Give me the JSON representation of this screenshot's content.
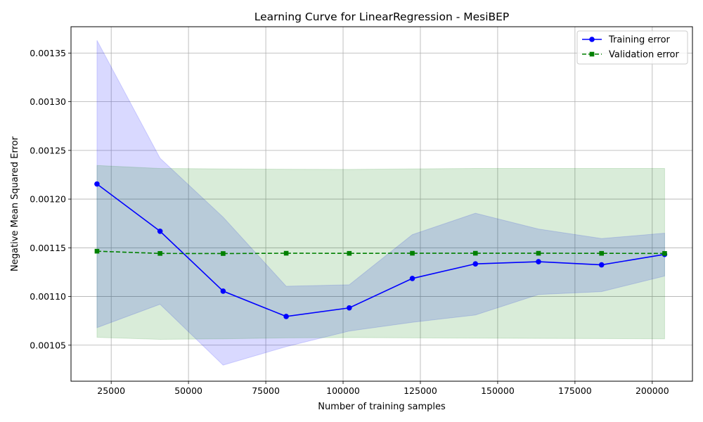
{
  "chart_data": {
    "type": "line",
    "title": "Learning Curve for LinearRegression - MesiBEP",
    "xlabel": "Number of training samples",
    "ylabel": "Negative Mean Squared Error",
    "xlim": [
      12000,
      213000
    ],
    "ylim": [
      0.001013,
      0.001377
    ],
    "x_ticks": [
      25000,
      50000,
      75000,
      100000,
      125000,
      150000,
      175000,
      200000
    ],
    "y_ticks": [
      0.00105,
      0.0011,
      0.00115,
      0.0012,
      0.00125,
      0.0013,
      0.00135
    ],
    "x_tick_labels": [
      "25000",
      "50000",
      "75000",
      "100000",
      "125000",
      "150000",
      "175000",
      "200000"
    ],
    "y_tick_labels": [
      "0.00105",
      "0.00110",
      "0.00115",
      "0.00120",
      "0.00125",
      "0.00130",
      "0.00135"
    ],
    "grid": true,
    "legend_position": "top-right",
    "x": [
      20400,
      40800,
      61200,
      81600,
      102000,
      122400,
      142800,
      163200,
      183600,
      204000
    ],
    "series": [
      {
        "name": "Training error",
        "color": "#0000ff",
        "line_style": "solid",
        "marker": "circle",
        "values": [
          0.0012155,
          0.001167,
          0.0011055,
          0.0010795,
          0.0010883,
          0.0011185,
          0.0011335,
          0.0011357,
          0.0011325,
          0.0011432
        ],
        "band_upper": [
          0.001363,
          0.001242,
          0.0011815,
          0.0011105,
          0.001112,
          0.0011635,
          0.0011855,
          0.0011693,
          0.0011595,
          0.001165
        ],
        "band_lower": [
          0.001068,
          0.001092,
          0.0010295,
          0.0010485,
          0.0010645,
          0.0010735,
          0.001081,
          0.001102,
          0.001105,
          0.001121
        ],
        "band_color": "#0000ff"
      },
      {
        "name": "Validation error",
        "color": "#008000",
        "line_style": "dashed",
        "marker": "square",
        "values": [
          0.0011465,
          0.0011442,
          0.0011441,
          0.0011444,
          0.0011443,
          0.0011444,
          0.0011444,
          0.0011444,
          0.0011443,
          0.0011442
        ],
        "band_upper": [
          0.0012345,
          0.0012315,
          0.001231,
          0.0012307,
          0.0012305,
          0.001231,
          0.0012315,
          0.0012315,
          0.0012315,
          0.0012315
        ],
        "band_lower": [
          0.001058,
          0.001056,
          0.0010565,
          0.0010575,
          0.0010578,
          0.0010575,
          0.0010572,
          0.001057,
          0.0010568,
          0.0010565
        ],
        "band_color": "#008000"
      }
    ]
  }
}
